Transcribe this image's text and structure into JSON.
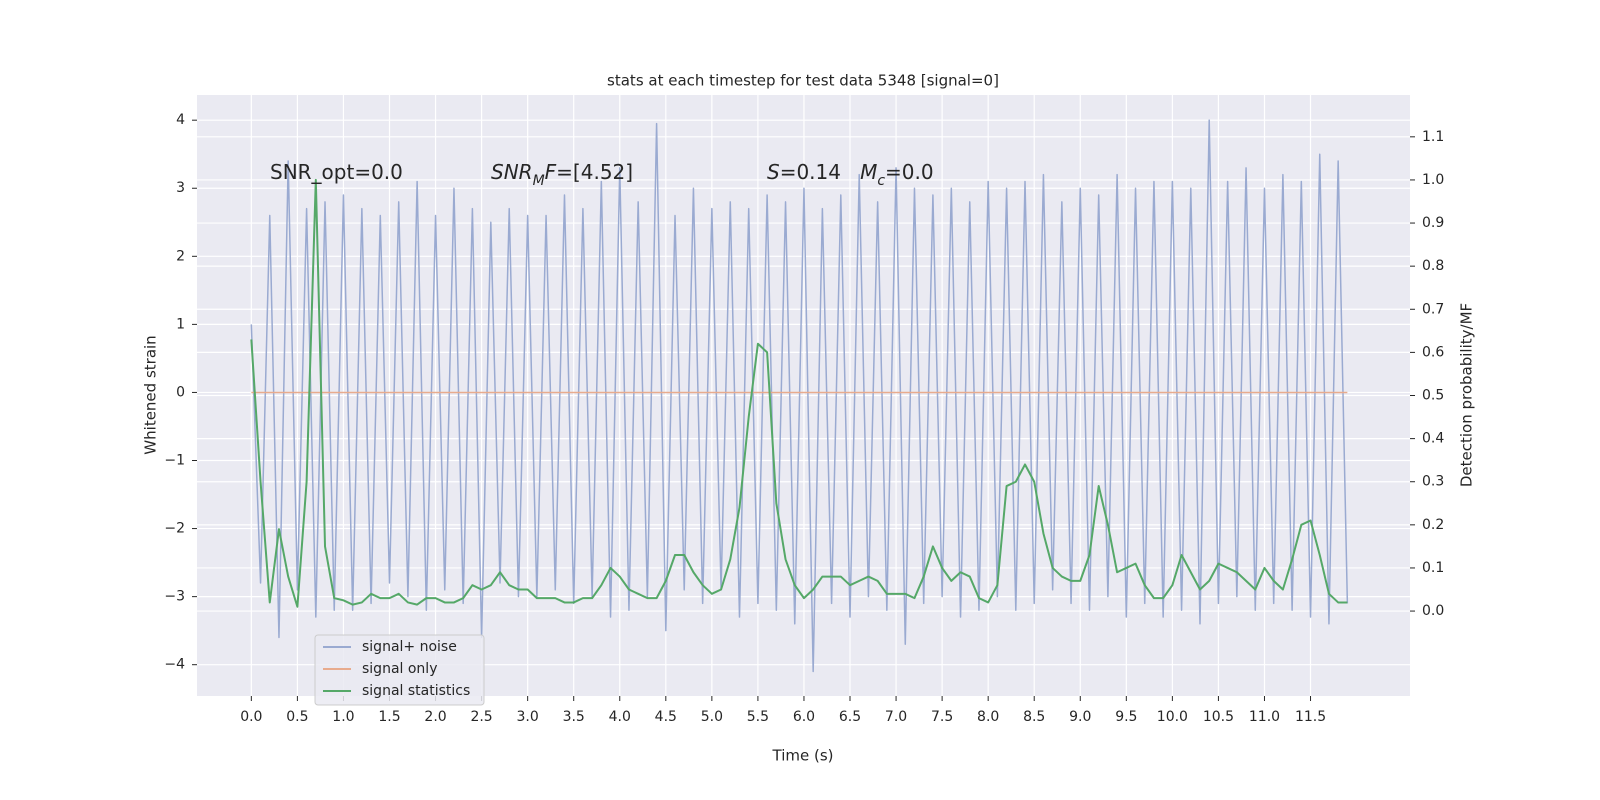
{
  "chart_data": {
    "type": "line",
    "title": "stats at each timestep for test data 5348 [signal=0]",
    "xlabel": "Time (s)",
    "ylabel": "Whitened strain",
    "y2label": "Detection probability/MF",
    "annotations": [
      [
        {
          "text": "SNR_opt=0.0",
          "style": "normal"
        }
      ],
      [
        {
          "text": "SNR",
          "style": "italic"
        },
        {
          "text": "M",
          "style": "italic-sub"
        },
        {
          "text": "F",
          "style": "italic"
        },
        {
          "text": "=[4.52]",
          "style": "normal"
        }
      ],
      [
        {
          "text": "S",
          "style": "italic"
        },
        {
          "text": "=0.14   ",
          "style": "normal"
        },
        {
          "text": "M",
          "style": "italic"
        },
        {
          "text": "c",
          "style": "italic-sub"
        },
        {
          "text": "=0.0",
          "style": "normal"
        }
      ]
    ],
    "x": [
      0.0,
      0.1,
      0.2,
      0.3,
      0.4,
      0.5,
      0.6,
      0.7,
      0.8,
      0.9,
      1.0,
      1.1,
      1.2,
      1.3,
      1.4,
      1.5,
      1.6,
      1.7,
      1.8,
      1.9,
      2.0,
      2.1,
      2.2,
      2.3,
      2.4,
      2.5,
      2.6,
      2.7,
      2.8,
      2.9,
      3.0,
      3.1,
      3.2,
      3.3,
      3.4,
      3.5,
      3.6,
      3.7,
      3.8,
      3.9,
      4.0,
      4.1,
      4.2,
      4.3,
      4.4,
      4.5,
      4.6,
      4.7,
      4.8,
      4.9,
      5.0,
      5.1,
      5.2,
      5.3,
      5.4,
      5.5,
      5.6,
      5.7,
      5.8,
      5.9,
      6.0,
      6.1,
      6.2,
      6.3,
      6.4,
      6.5,
      6.6,
      6.7,
      6.8,
      6.9,
      7.0,
      7.1,
      7.2,
      7.3,
      7.4,
      7.5,
      7.6,
      7.7,
      7.8,
      7.9,
      8.0,
      8.1,
      8.2,
      8.3,
      8.4,
      8.5,
      8.6,
      8.7,
      8.8,
      8.9,
      9.0,
      9.1,
      9.2,
      9.3,
      9.4,
      9.5,
      9.6,
      9.7,
      9.8,
      9.9,
      10.0,
      10.1,
      10.2,
      10.3,
      10.4,
      10.5,
      10.6,
      10.7,
      10.8,
      10.9,
      11.0,
      11.1,
      11.2,
      11.3,
      11.4,
      11.5,
      11.6,
      11.7,
      11.8,
      11.9
    ],
    "series": [
      {
        "name": "signal+ noise",
        "color": "#9aaad1",
        "axis": "y",
        "values": [
          1.0,
          -2.8,
          2.6,
          -3.6,
          3.4,
          -2.9,
          2.7,
          -3.3,
          2.8,
          -3.2,
          2.9,
          -3.2,
          2.7,
          -3.1,
          2.6,
          -2.8,
          2.8,
          -3.0,
          3.1,
          -3.2,
          2.6,
          -2.9,
          3.0,
          -3.1,
          2.7,
          -3.6,
          2.5,
          -2.8,
          2.7,
          -3.0,
          2.6,
          -3.0,
          2.6,
          -2.9,
          2.9,
          -3.1,
          2.7,
          -3.0,
          3.1,
          -3.3,
          3.3,
          -3.2,
          2.8,
          -3.0,
          3.95,
          -3.5,
          2.6,
          -2.9,
          3.0,
          -3.1,
          2.7,
          -2.9,
          2.8,
          -3.3,
          2.7,
          -3.1,
          2.9,
          -3.2,
          2.8,
          -3.4,
          3.0,
          -4.1,
          2.7,
          -3.1,
          2.9,
          -3.3,
          3.2,
          -3.0,
          2.8,
          -3.2,
          3.3,
          -3.7,
          3.0,
          -3.1,
          2.9,
          -3.0,
          3.0,
          -3.3,
          2.8,
          -3.2,
          3.1,
          -3.0,
          3.0,
          -3.2,
          3.1,
          -3.1,
          3.2,
          -2.9,
          2.8,
          -3.1,
          3.0,
          -3.2,
          2.9,
          -3.0,
          3.2,
          -3.3,
          3.0,
          -3.1,
          3.1,
          -3.3,
          3.1,
          -3.2,
          3.0,
          -3.4,
          4.0,
          -3.1,
          3.1,
          -3.0,
          3.3,
          -3.2,
          3.0,
          -3.1,
          3.2,
          -3.2,
          3.1,
          -3.3,
          3.5,
          -3.4,
          3.4,
          -3.1
        ]
      },
      {
        "name": "signal only",
        "color": "#e8ab8d",
        "axis": "y",
        "values": [
          0,
          0,
          0,
          0,
          0,
          0,
          0,
          0,
          0,
          0,
          0,
          0,
          0,
          0,
          0,
          0,
          0,
          0,
          0,
          0,
          0,
          0,
          0,
          0,
          0,
          0,
          0,
          0,
          0,
          0,
          0,
          0,
          0,
          0,
          0,
          0,
          0,
          0,
          0,
          0,
          0,
          0,
          0,
          0,
          0,
          0,
          0,
          0,
          0,
          0,
          0,
          0,
          0,
          0,
          0,
          0,
          0,
          0,
          0,
          0,
          0,
          0,
          0,
          0,
          0,
          0,
          0,
          0,
          0,
          0,
          0,
          0,
          0,
          0,
          0,
          0,
          0,
          0,
          0,
          0,
          0,
          0,
          0,
          0,
          0,
          0,
          0,
          0,
          0,
          0,
          0,
          0,
          0,
          0,
          0,
          0,
          0,
          0,
          0,
          0,
          0,
          0,
          0,
          0,
          0,
          0,
          0,
          0,
          0,
          0,
          0,
          0,
          0,
          0,
          0,
          0,
          0,
          0,
          0,
          0
        ]
      },
      {
        "name": "signal statistics",
        "color": "#55a868",
        "axis": "y2",
        "values": [
          0.63,
          0.3,
          0.02,
          0.19,
          0.08,
          0.01,
          0.3,
          1.0,
          0.15,
          0.03,
          0.025,
          0.015,
          0.02,
          0.04,
          0.03,
          0.03,
          0.04,
          0.02,
          0.015,
          0.03,
          0.03,
          0.02,
          0.02,
          0.03,
          0.06,
          0.05,
          0.06,
          0.09,
          0.06,
          0.05,
          0.05,
          0.03,
          0.03,
          0.03,
          0.02,
          0.02,
          0.03,
          0.03,
          0.06,
          0.1,
          0.08,
          0.05,
          0.04,
          0.03,
          0.03,
          0.07,
          0.13,
          0.13,
          0.09,
          0.06,
          0.04,
          0.05,
          0.12,
          0.24,
          0.45,
          0.62,
          0.6,
          0.25,
          0.12,
          0.06,
          0.03,
          0.05,
          0.08,
          0.08,
          0.08,
          0.06,
          0.07,
          0.08,
          0.07,
          0.04,
          0.04,
          0.04,
          0.03,
          0.08,
          0.15,
          0.1,
          0.07,
          0.09,
          0.08,
          0.03,
          0.02,
          0.06,
          0.29,
          0.3,
          0.34,
          0.3,
          0.18,
          0.1,
          0.08,
          0.07,
          0.07,
          0.13,
          0.29,
          0.2,
          0.09,
          0.1,
          0.11,
          0.06,
          0.03,
          0.03,
          0.06,
          0.13,
          0.09,
          0.05,
          0.07,
          0.11,
          0.1,
          0.09,
          0.07,
          0.05,
          0.1,
          0.07,
          0.05,
          0.12,
          0.2,
          0.21,
          0.13,
          0.04,
          0.02,
          0.02
        ]
      }
    ],
    "xlim": [
      -0.59,
      12.58
    ],
    "ylim": [
      -4.46,
      4.37
    ],
    "y2lim": [
      -0.197,
      1.197
    ],
    "xticks": [
      {
        "value": 0,
        "label": "0.0"
      },
      0.5,
      {
        "value": 1,
        "label": "1.0"
      },
      1.5,
      {
        "value": 2,
        "label": "2.0"
      },
      2.5,
      {
        "value": 3,
        "label": "3.0"
      },
      3.5,
      {
        "value": 4,
        "label": "4.0"
      },
      4.5,
      {
        "value": 5,
        "label": "5.0"
      },
      5.5,
      {
        "value": 6,
        "label": "6.0"
      },
      6.5,
      {
        "value": 7,
        "label": "7.0"
      },
      7.5,
      {
        "value": 8,
        "label": "8.0"
      },
      8.5,
      {
        "value": 9,
        "label": "9.0"
      },
      9.5,
      {
        "value": 10,
        "label": "10.0"
      },
      10.5,
      {
        "value": 11,
        "label": "11.0"
      },
      11.5
    ],
    "yticks": [
      {
        "value": -4,
        "label": "−4"
      },
      {
        "value": -3,
        "label": "−3"
      },
      {
        "value": -2,
        "label": "−2"
      },
      {
        "value": -1,
        "label": "−1"
      },
      0,
      1,
      2,
      3,
      4
    ],
    "y2ticks": [
      {
        "value": 0,
        "label": "0.0"
      },
      0.1,
      0.2,
      0.3,
      0.4,
      0.5,
      0.6,
      0.7,
      0.8,
      0.9,
      {
        "value": 1,
        "label": "1.0"
      },
      1.1
    ],
    "grid": true,
    "legend": "lower left"
  }
}
